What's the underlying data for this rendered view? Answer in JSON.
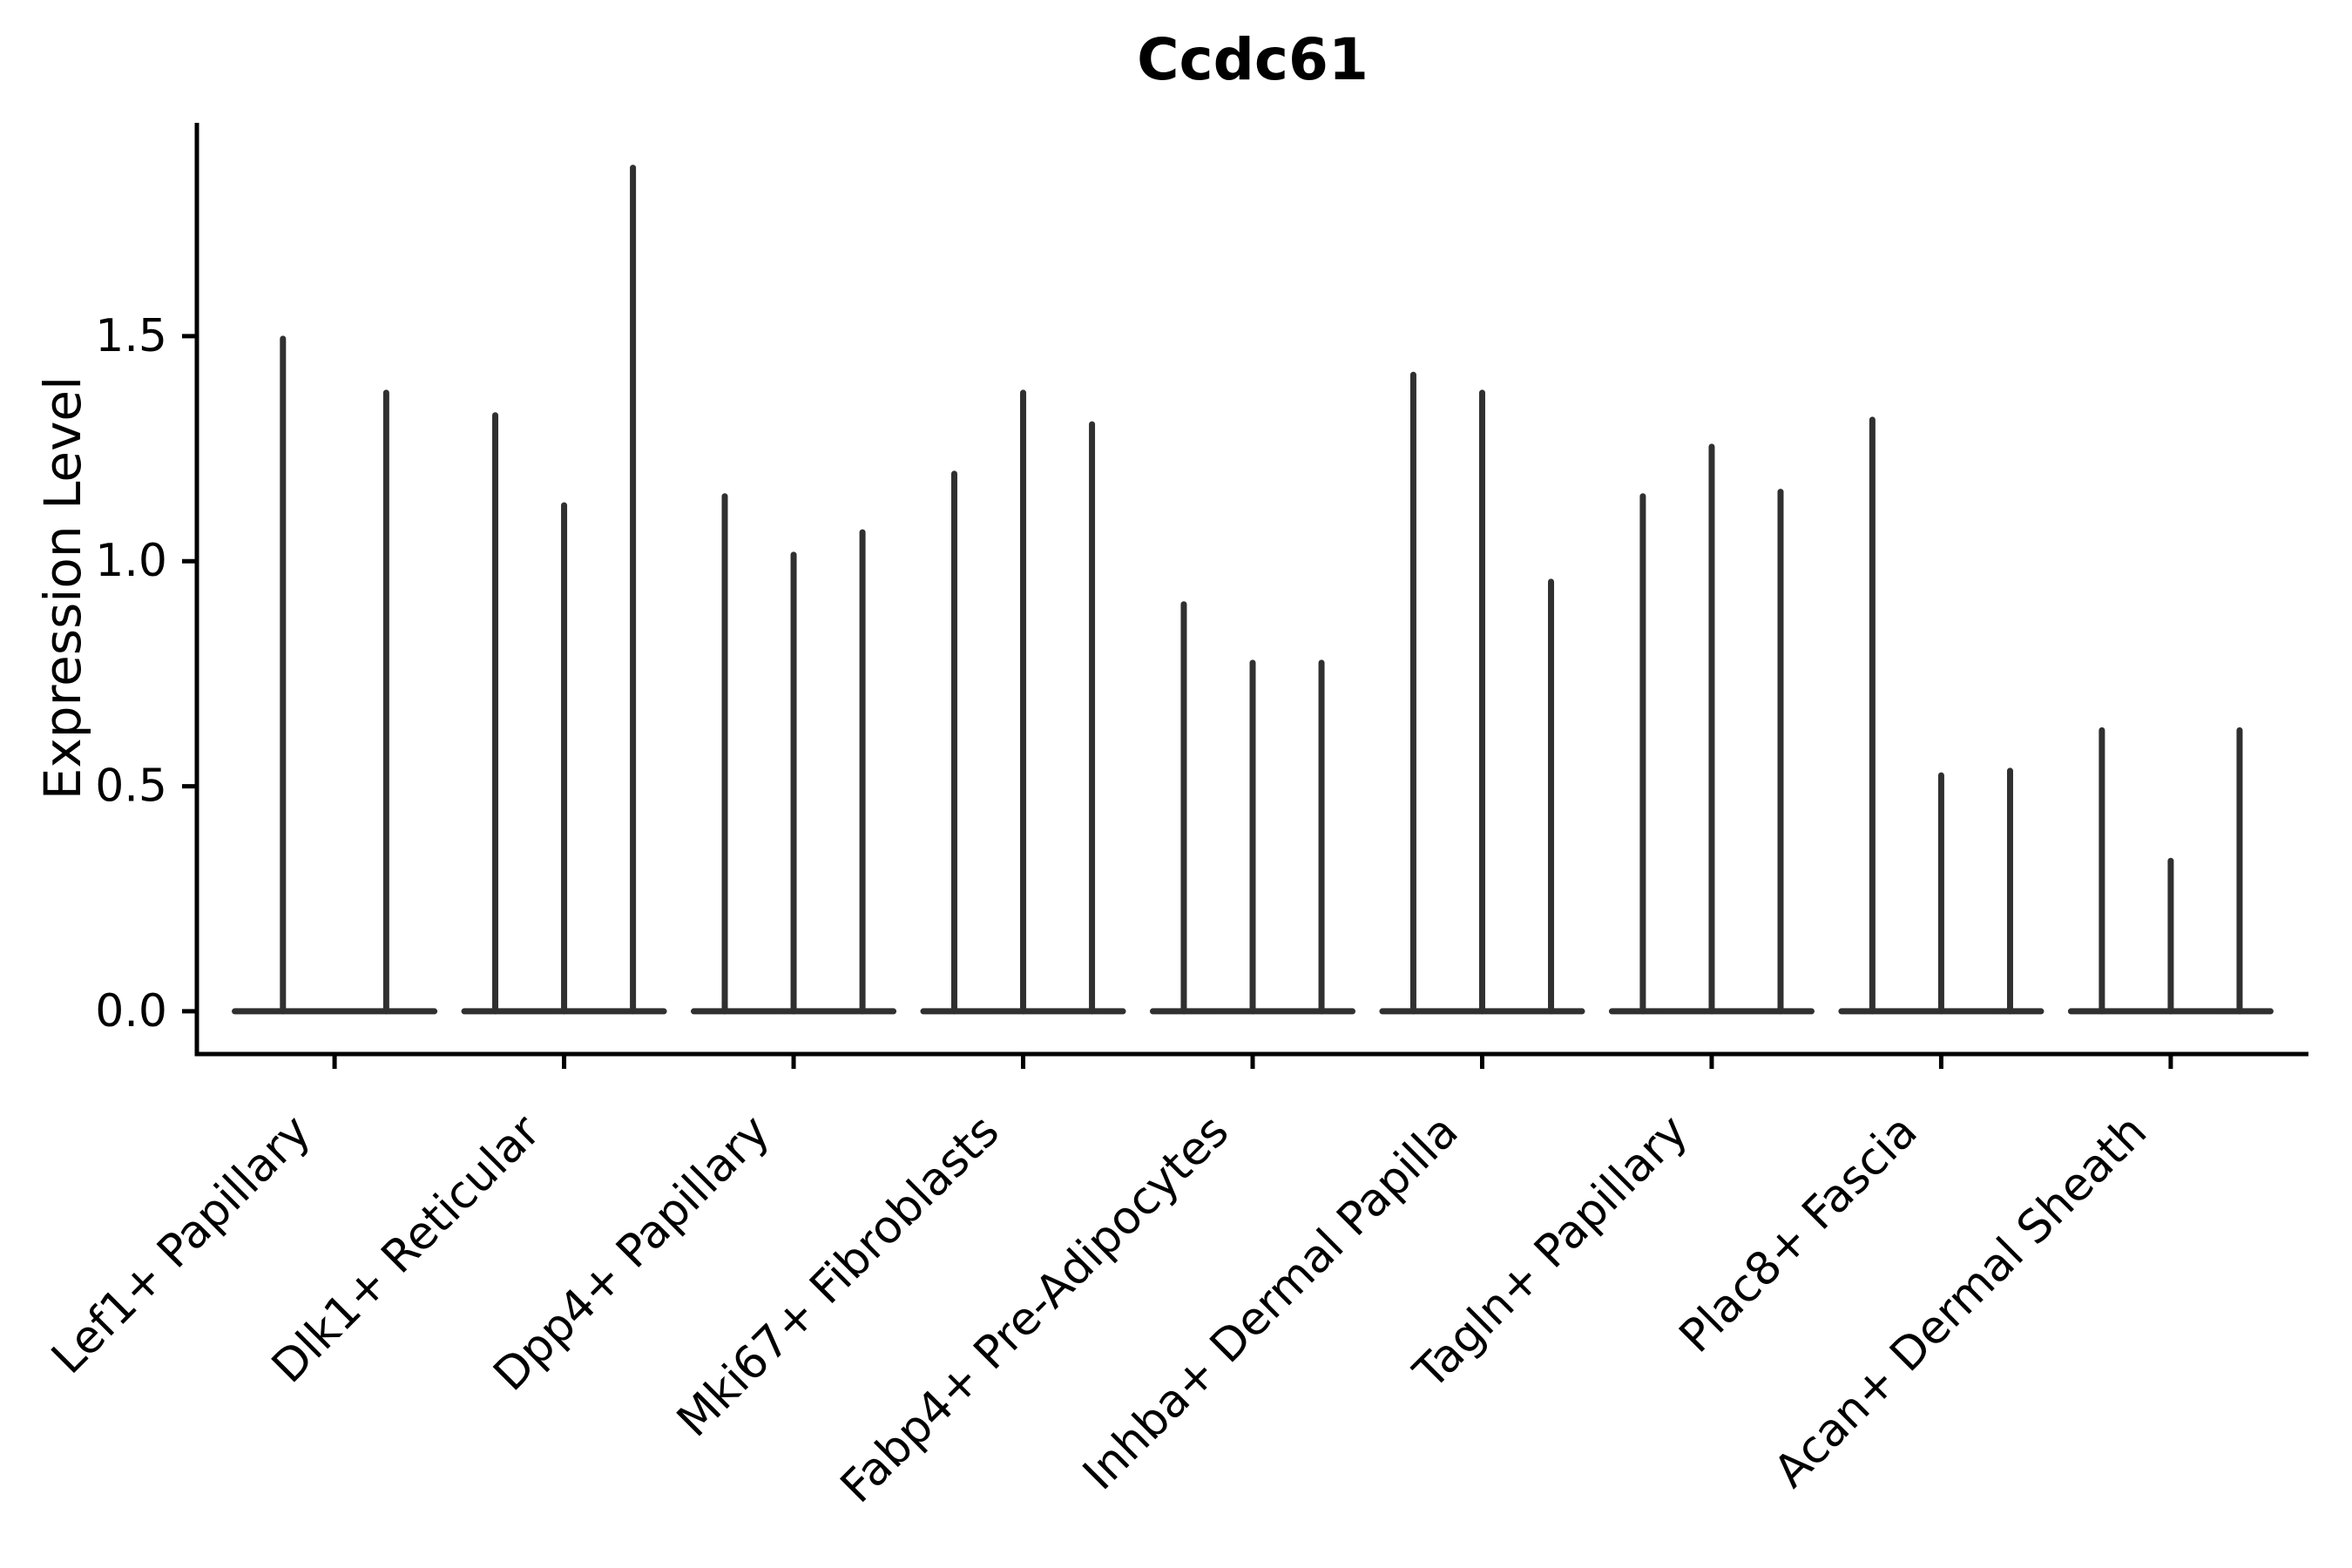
{
  "chart_data": {
    "type": "violin",
    "title": "Ccdc61",
    "ylabel": "Expression Level",
    "xlabel": "",
    "yticks": [
      "0.0",
      "0.5",
      "1.0",
      "1.5"
    ],
    "ytick_values": [
      0.0,
      0.5,
      1.0,
      1.5
    ],
    "ylim": [
      -0.095,
      1.974
    ],
    "grid": false,
    "legend": "none",
    "baseline_value": 0.0,
    "categories": [
      {
        "label": "Lef1+ Papillary",
        "violin_peaks": [
          1.5,
          1.38
        ]
      },
      {
        "label": "Dlk1+ Reticular",
        "violin_peaks": [
          1.33,
          1.13,
          1.88
        ]
      },
      {
        "label": "Dpp4+ Papillary",
        "violin_peaks": [
          1.15,
          1.02,
          1.07
        ]
      },
      {
        "label": "Mki67+ Fibroblasts",
        "violin_peaks": [
          1.2,
          1.38,
          1.31
        ]
      },
      {
        "label": "Fabp4+ Pre-Adipocytes",
        "violin_peaks": [
          0.91,
          0.78,
          0.78
        ]
      },
      {
        "label": "Inhba+ Dermal Papilla",
        "violin_peaks": [
          1.42,
          1.38,
          0.96
        ]
      },
      {
        "label": "Tagln+ Papillary",
        "violin_peaks": [
          1.15,
          1.26,
          1.16
        ]
      },
      {
        "label": "Plac8+ Fascia",
        "violin_peaks": [
          1.32,
          0.53,
          0.54
        ]
      },
      {
        "label": "Acan+ Dermal Sheath",
        "violin_peaks": [
          0.63,
          0.34,
          0.63
        ]
      }
    ],
    "colors": {
      "violin_stroke": "#303030",
      "axis": "#000000",
      "text": "#000000",
      "background": "#ffffff"
    }
  }
}
